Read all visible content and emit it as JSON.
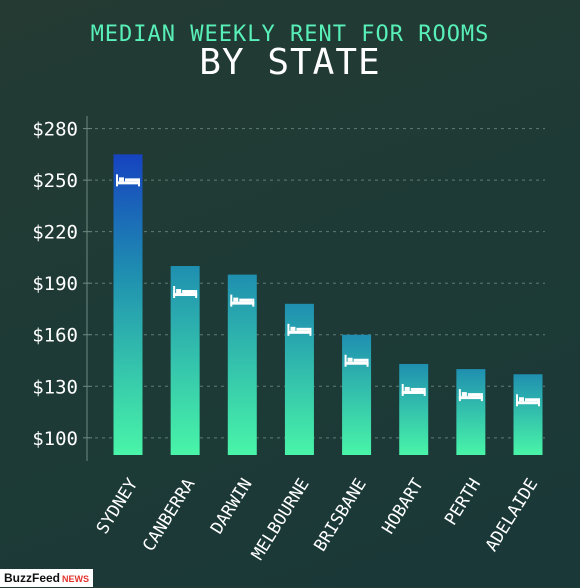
{
  "chart_data": {
    "type": "bar",
    "title": "MEDIAN WEEKLY RENT FOR ROOMS",
    "subtitle": "BY STATE",
    "categories": [
      "SYDNEY",
      "CANBERRA",
      "DARWIN",
      "MELBOURNE",
      "BRISBANE",
      "HOBART",
      "PERTH",
      "ADELAIDE"
    ],
    "values": [
      265,
      200,
      195,
      178,
      160,
      143,
      140,
      137
    ],
    "yticks": [
      "$100",
      "$130",
      "$160",
      "$190",
      "$220",
      "$250",
      "$280"
    ],
    "ytick_values": [
      100,
      130,
      160,
      190,
      220,
      250,
      280
    ],
    "ylim": [
      90,
      285
    ],
    "grid": true,
    "colors": {
      "bar_top": "#1f8fb0",
      "bar_bottom": "#49f5a8",
      "tallest_top": "#1643c0",
      "text": "#ffffff",
      "title": "#58f0b8"
    },
    "bar_icon": "bed-icon"
  },
  "branding": {
    "brand": "BuzzFeed",
    "suffix": "NEWS"
  }
}
